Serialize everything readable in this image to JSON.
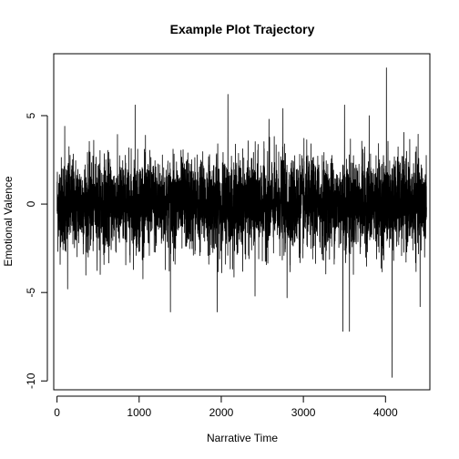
{
  "chart_data": {
    "type": "line",
    "title": "Example Plot Trajectory",
    "xlabel": "Narrative Time",
    "ylabel": "Emotional Valence",
    "xlim": [
      -40,
      4540
    ],
    "ylim": [
      -10.5,
      8.5
    ],
    "x_ticks": [
      0,
      1000,
      2000,
      3000,
      4000
    ],
    "y_ticks": [
      -10,
      -5,
      0,
      5
    ],
    "x_tick_labels": [
      "0",
      "1000",
      "2000",
      "3000",
      "4000"
    ],
    "y_tick_labels": [
      "-10",
      "-5",
      "0",
      "5"
    ],
    "grid": false,
    "legend": "none",
    "series": [
      {
        "color": "#000000",
        "n_points": 4500,
        "noise_sd": 1.3,
        "sampled_spikes": [
          {
            "x": 93,
            "y": 4.4
          },
          {
            "x": 128,
            "y": -4.8
          },
          {
            "x": 950,
            "y": 5.6
          },
          {
            "x": 1380,
            "y": -6.1
          },
          {
            "x": 1950,
            "y": -6.1
          },
          {
            "x": 2080,
            "y": 6.2
          },
          {
            "x": 2410,
            "y": -5.2
          },
          {
            "x": 2580,
            "y": 4.8
          },
          {
            "x": 2750,
            "y": 5.4
          },
          {
            "x": 2800,
            "y": -5.3
          },
          {
            "x": 3480,
            "y": -7.2
          },
          {
            "x": 3500,
            "y": 5.6
          },
          {
            "x": 3560,
            "y": -7.2
          },
          {
            "x": 3800,
            "y": 5.0
          },
          {
            "x": 4010,
            "y": 7.7
          },
          {
            "x": 4080,
            "y": -9.8
          },
          {
            "x": 4420,
            "y": -5.8
          }
        ]
      }
    ]
  }
}
